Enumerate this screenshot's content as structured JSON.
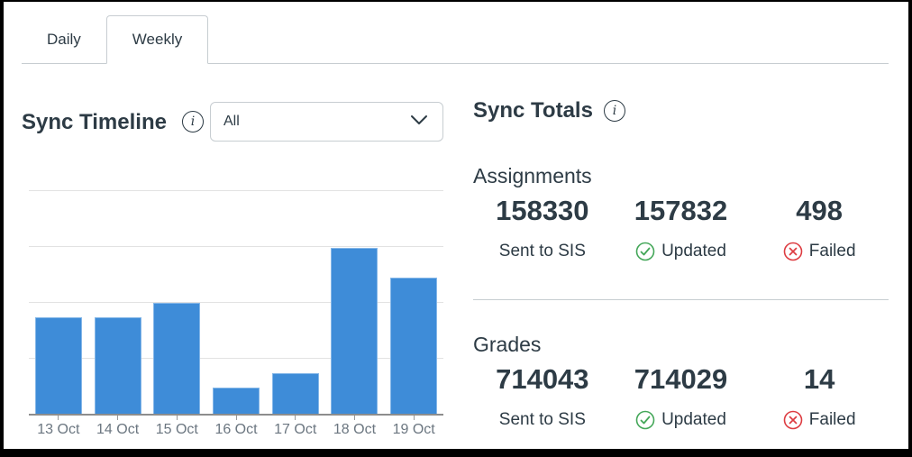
{
  "tabs": [
    {
      "label": "Daily",
      "active": false
    },
    {
      "label": "Weekly",
      "active": true
    }
  ],
  "timeline": {
    "title": "Sync Timeline",
    "info_icon": "info-icon",
    "info_glyph": "i",
    "filter": {
      "selected_value": "All",
      "chevron_icon": "chevron-down-icon"
    }
  },
  "chart_data": {
    "type": "bar",
    "title": "Sync Timeline",
    "categories": [
      "13 Oct",
      "14 Oct",
      "15 Oct",
      "16 Oct",
      "17 Oct",
      "18 Oct",
      "19 Oct"
    ],
    "values": [
      1.72,
      1.72,
      1.98,
      0.47,
      0.73,
      2.97,
      2.44
    ],
    "xlabel": "",
    "ylabel": "",
    "ylim": [
      0,
      4
    ],
    "y_tick_labels_visible": false,
    "grid": "horizontal",
    "legend": "none",
    "bar_color": "#3e8cd8"
  },
  "totals": {
    "title": "Sync Totals",
    "info_icon": "info-icon",
    "info_glyph": "i",
    "sections": [
      {
        "name": "Assignments",
        "stats": [
          {
            "value": "158330",
            "label": "Sent to SIS",
            "icon": "none"
          },
          {
            "value": "157832",
            "label": "Updated",
            "icon": "check-circle-icon"
          },
          {
            "value": "498",
            "label": "Failed",
            "icon": "x-circle-icon"
          }
        ]
      },
      {
        "name": "Grades",
        "stats": [
          {
            "value": "714043",
            "label": "Sent to SIS",
            "icon": "none"
          },
          {
            "value": "714029",
            "label": "Updated",
            "icon": "check-circle-icon"
          },
          {
            "value": "14",
            "label": "Failed",
            "icon": "x-circle-icon"
          }
        ]
      }
    ]
  },
  "colors": {
    "ink": "#2D3B45",
    "bar_blue": "#3e8cd8",
    "bar_border": "#85b7e8",
    "success_green": "#44a759",
    "fail_red": "#dd3c41",
    "tab_border": "#c7cdd1",
    "gridline": "#e2e2e2",
    "axis": "#8d8d8d",
    "axis_label": "#6b7680",
    "frame": "#000000"
  }
}
